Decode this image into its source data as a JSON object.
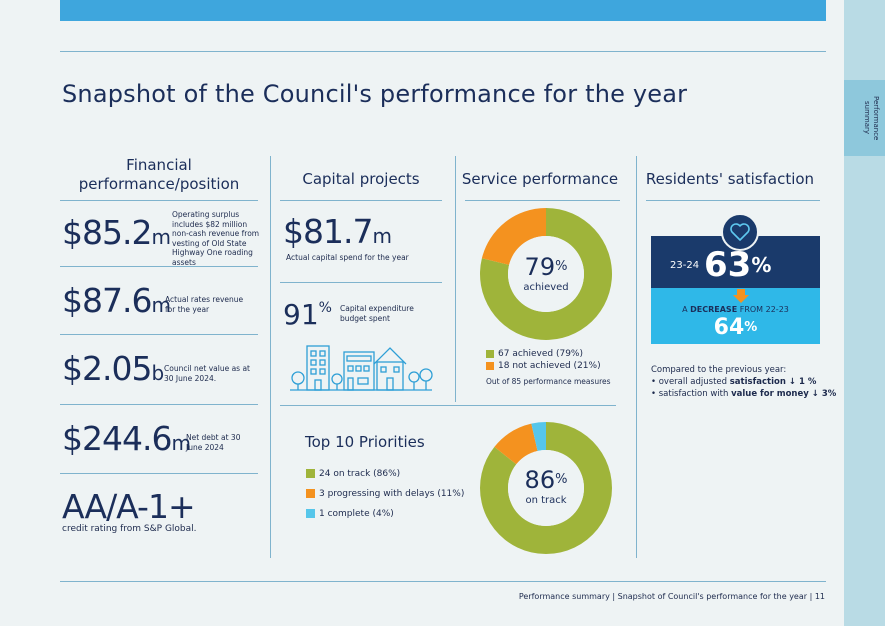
{
  "page": {
    "title": "Snapshot of the Council's performance for the year",
    "side_tab": "Performance summary",
    "footer": "Performance summary | Snapshot of Council's performance for the year | 11"
  },
  "financial": {
    "heading_line1": "Financial",
    "heading_line2": "performance/position",
    "items": [
      {
        "value": "$85.2",
        "unit": "m",
        "note": "Operating surplus includes $82 million non-cash revenue from vesting of Old State Highway One roading assets"
      },
      {
        "value": "$87.6",
        "unit": "m",
        "note": "Actual rates revenue for the year"
      },
      {
        "value": "$2.05",
        "unit": "b",
        "note": "Council net value as at 30 June 2024."
      },
      {
        "value": "$244.6",
        "unit": "m",
        "note": "Net debt at 30 June 2024"
      }
    ],
    "rating": "AA/A-1+",
    "rating_note": "credit rating from S&P Global."
  },
  "capital": {
    "heading": "Capital projects",
    "spend_value": "$81.7",
    "spend_unit": "m",
    "spend_note": "Actual capital spend for the year",
    "budget_pct": "91",
    "budget_pct_sign": "%",
    "budget_note": "Capital expenditure budget spent"
  },
  "service": {
    "heading": "Service performance",
    "center_value": "79",
    "center_sign": "%",
    "center_label": "achieved",
    "legend": [
      {
        "label": "67 achieved (79%)",
        "color": "#9fb43a"
      },
      {
        "label": "18 not achieved (21%)",
        "color": "#f4921f"
      }
    ],
    "footnote": "Out of 85 performance measures"
  },
  "priorities": {
    "heading": "Top 10 Priorities",
    "center_value": "86",
    "center_sign": "%",
    "center_label": "on track",
    "legend": [
      {
        "label": "24 on track (86%)",
        "color": "#9fb43a"
      },
      {
        "label": "3 progressing with delays (11%)",
        "color": "#f4921f"
      },
      {
        "label": "1 complete (4%)",
        "color": "#56c6ea"
      }
    ]
  },
  "satisfaction": {
    "heading": "Residents' satisfaction",
    "year_label": "23-24",
    "value": "63",
    "sign": "%",
    "decrease_prefix": "A",
    "decrease_word": "DECREASE",
    "decrease_suffix": "FROM 22-23",
    "prev_value": "64",
    "prev_sign": "%",
    "compare_intro": "Compared to the previous year:",
    "bullets": [
      {
        "pre": "overall adjusted ",
        "bold": "satisfaction",
        "post": " ↓ 1 %"
      },
      {
        "pre": "satisfaction with ",
        "bold": "value for money",
        "post": " ↓ 3%"
      }
    ]
  },
  "chart_data": [
    {
      "type": "pie",
      "title": "Service performance",
      "categories": [
        "achieved",
        "not achieved"
      ],
      "values": [
        67,
        18
      ],
      "colors": [
        "#9fb43a",
        "#f4921f"
      ]
    },
    {
      "type": "pie",
      "title": "Top 10 Priorities",
      "categories": [
        "on track",
        "progressing with delays",
        "complete"
      ],
      "values": [
        24,
        3,
        1
      ],
      "colors": [
        "#9fb43a",
        "#f4921f",
        "#56c6ea"
      ]
    }
  ],
  "colors": {
    "navy": "#1b2e5a",
    "accent": "#3ea6dd",
    "green": "#9fb43a",
    "orange": "#f4921f",
    "cyan": "#56c6ea"
  }
}
